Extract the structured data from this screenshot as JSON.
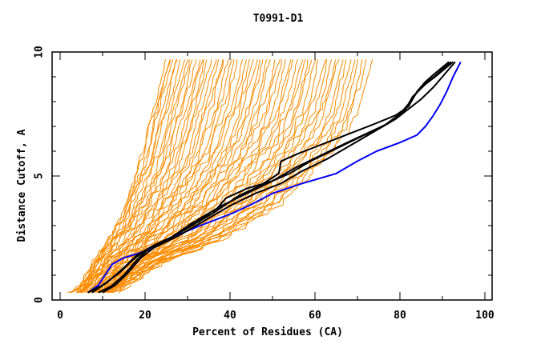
{
  "chart_data": {
    "type": "line",
    "title": "T0991-D1",
    "xlabel": "Percent of Residues (CA)",
    "ylabel": "Distance Cutoff, A",
    "xlim": [
      0,
      100
    ],
    "ylim": [
      0,
      10
    ],
    "xticks": [
      0,
      20,
      40,
      60,
      80,
      100
    ],
    "xtick_labels": [
      "0",
      "20",
      "40",
      "60",
      "80",
      "100"
    ],
    "xminor_ticks": [
      10,
      30,
      50,
      70,
      90
    ],
    "yticks": [
      0,
      5,
      10
    ],
    "ytick_labels": [
      "0",
      "5",
      "10"
    ],
    "yminor_ticks": [
      1,
      2,
      3,
      4,
      6,
      7,
      8,
      9
    ],
    "grid": false,
    "legend": "none",
    "colors": {
      "other_models": "#ff8c00",
      "highlight_black": "#000000",
      "highlight_blue": "#0000ff",
      "axes": "#000000"
    },
    "series": [
      {
        "name": "highlight-blue",
        "color": "#0000ff",
        "points": [
          [
            6.6,
            0.3
          ],
          [
            9,
            0.6
          ],
          [
            12.3,
            1.45
          ],
          [
            15,
            1.7
          ],
          [
            17.9,
            1.85
          ],
          [
            22,
            2.1
          ],
          [
            27.4,
            2.6
          ],
          [
            33,
            3.0
          ],
          [
            40.6,
            3.5
          ],
          [
            45,
            3.85
          ],
          [
            50,
            4.3
          ],
          [
            57,
            4.7
          ],
          [
            65,
            5.1
          ],
          [
            70,
            5.6
          ],
          [
            74.5,
            6.0
          ],
          [
            80,
            6.35
          ],
          [
            84,
            6.65
          ],
          [
            86,
            7.0
          ],
          [
            87.7,
            7.4
          ],
          [
            89.5,
            7.9
          ],
          [
            91,
            8.4
          ],
          [
            92.5,
            9.0
          ],
          [
            94.3,
            9.6
          ]
        ]
      },
      {
        "name": "highlight-black-1",
        "color": "#000000",
        "points": [
          [
            6.5,
            0.3
          ],
          [
            10,
            0.6
          ],
          [
            14,
            1.1
          ],
          [
            17,
            1.6
          ],
          [
            20,
            2.0
          ],
          [
            25,
            2.4
          ],
          [
            31,
            3.0
          ],
          [
            36,
            3.5
          ],
          [
            42,
            4.2
          ],
          [
            47,
            4.6
          ],
          [
            51.5,
            5.1
          ],
          [
            52,
            5.6
          ],
          [
            56,
            5.9
          ],
          [
            62,
            6.3
          ],
          [
            68,
            6.7
          ],
          [
            74,
            7.1
          ],
          [
            79,
            7.45
          ],
          [
            82,
            7.8
          ],
          [
            84,
            8.4
          ],
          [
            86,
            8.8
          ],
          [
            88,
            9.1
          ],
          [
            91.5,
            9.6
          ]
        ]
      },
      {
        "name": "highlight-black-2",
        "color": "#000000",
        "points": [
          [
            7.5,
            0.3
          ],
          [
            11,
            0.7
          ],
          [
            15,
            1.3
          ],
          [
            18,
            1.8
          ],
          [
            22,
            2.2
          ],
          [
            27,
            2.6
          ],
          [
            33,
            3.3
          ],
          [
            38,
            3.8
          ],
          [
            44,
            4.3
          ],
          [
            50,
            4.8
          ],
          [
            55,
            5.3
          ],
          [
            61,
            5.8
          ],
          [
            67,
            6.3
          ],
          [
            72,
            6.7
          ],
          [
            77,
            7.1
          ],
          [
            81,
            7.6
          ],
          [
            83,
            8.2
          ],
          [
            86,
            8.7
          ],
          [
            89,
            9.1
          ],
          [
            92.5,
            9.6
          ]
        ]
      },
      {
        "name": "highlight-black-3",
        "color": "#000000",
        "points": [
          [
            9,
            0.3
          ],
          [
            12,
            0.55
          ],
          [
            15,
            1.0
          ],
          [
            18,
            1.6
          ],
          [
            21,
            2.1
          ],
          [
            26,
            2.5
          ],
          [
            31,
            3.1
          ],
          [
            36,
            3.5
          ],
          [
            39,
            4.1
          ],
          [
            44,
            4.5
          ],
          [
            50,
            4.8
          ],
          [
            54,
            5.1
          ],
          [
            59,
            5.6
          ],
          [
            65,
            6.1
          ],
          [
            71,
            6.6
          ],
          [
            76,
            7.0
          ],
          [
            80,
            7.5
          ],
          [
            82,
            7.9
          ],
          [
            85,
            8.6
          ],
          [
            88,
            9.0
          ],
          [
            92,
            9.6
          ]
        ]
      },
      {
        "name": "highlight-black-4",
        "color": "#000000",
        "points": [
          [
            10,
            0.3
          ],
          [
            13,
            0.6
          ],
          [
            16,
            1.1
          ],
          [
            19,
            1.7
          ],
          [
            22,
            2.1
          ],
          [
            28,
            2.6
          ],
          [
            34,
            3.2
          ],
          [
            40,
            3.8
          ],
          [
            46,
            4.3
          ],
          [
            52,
            4.7
          ],
          [
            57,
            5.2
          ],
          [
            63,
            5.7
          ],
          [
            69,
            6.3
          ],
          [
            74,
            6.8
          ],
          [
            79,
            7.3
          ],
          [
            82,
            7.7
          ],
          [
            85,
            8.1
          ],
          [
            88,
            8.6
          ],
          [
            90,
            9.0
          ],
          [
            93,
            9.6
          ]
        ]
      }
    ],
    "orange_envelope": {
      "description": "many overlapping model curves",
      "left_edge": [
        [
          3,
          0.3
        ],
        [
          6,
          1.1
        ],
        [
          10,
          2.2
        ],
        [
          13,
          3.1
        ],
        [
          15,
          4.2
        ],
        [
          17,
          5.0
        ],
        [
          18.5,
          5.7
        ],
        [
          19,
          6.8
        ],
        [
          21,
          7.6
        ],
        [
          22,
          8.3
        ],
        [
          23,
          9.0
        ],
        [
          23.5,
          9.7
        ]
      ],
      "right_edge": [
        [
          13,
          0.3
        ],
        [
          18,
          0.8
        ],
        [
          24,
          1.5
        ],
        [
          32,
          2.0
        ],
        [
          40,
          2.6
        ],
        [
          46,
          3.3
        ],
        [
          52,
          3.9
        ],
        [
          56,
          4.6
        ],
        [
          60,
          5.3
        ],
        [
          64,
          6.0
        ],
        [
          67,
          6.7
        ],
        [
          69,
          7.5
        ],
        [
          70,
          8.2
        ],
        [
          71,
          8.9
        ],
        [
          72,
          9.7
        ]
      ],
      "count": 60
    }
  }
}
